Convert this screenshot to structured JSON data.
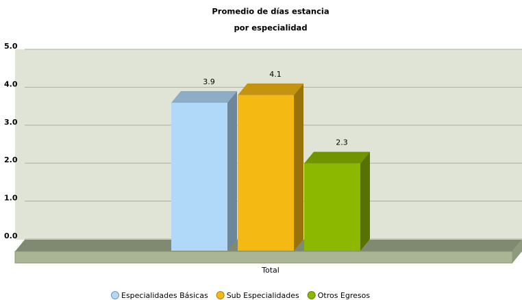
{
  "chart_data": {
    "type": "bar3d",
    "title": "Promedio de días estancia",
    "subtitle": "por especialidad",
    "categories": [
      "Total"
    ],
    "series": [
      {
        "name": "Especialidades Básicas",
        "color": "#b0d8f8",
        "values": [
          3.9
        ]
      },
      {
        "name": "Sub Especialidades",
        "color": "#f5b914",
        "values": [
          4.1
        ]
      },
      {
        "name": "Otros Egresos",
        "color": "#8cb800",
        "values": [
          2.3
        ]
      }
    ],
    "ylim": [
      0,
      5
    ],
    "yticks": [
      {
        "value": 0,
        "label": "0.0"
      },
      {
        "value": 1,
        "label": "1.0"
      },
      {
        "value": 2,
        "label": "2.0"
      },
      {
        "value": 3,
        "label": "3.0"
      },
      {
        "value": 4,
        "label": "4.0"
      },
      {
        "value": 5,
        "label": "5.0"
      }
    ],
    "grid": true
  }
}
